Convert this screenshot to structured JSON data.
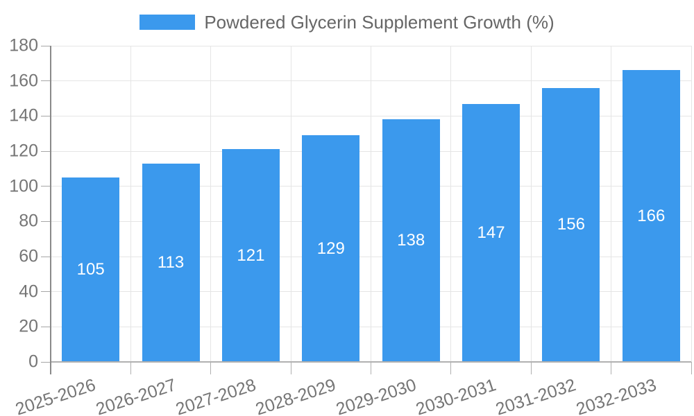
{
  "chart_data": {
    "type": "bar",
    "title": "Powdered Glycerin Supplement Growth (%)",
    "categories": [
      "2025-2026",
      "2026-2027",
      "2027-2028",
      "2028-2029",
      "2029-2030",
      "2030-2031",
      "2031-2032",
      "2032-2033"
    ],
    "values": [
      105,
      113,
      121,
      129,
      138,
      147,
      156,
      166
    ],
    "xlabel": "",
    "ylabel": "",
    "ylim": [
      0,
      180
    ],
    "yticks": [
      0,
      20,
      40,
      60,
      80,
      100,
      120,
      140,
      160,
      180
    ],
    "grid": true,
    "legend_position": "top-center",
    "value_labels_position": "inside-center"
  },
  "legend": {
    "label": "Powdered Glycerin Supplement Growth (%)"
  },
  "colors": {
    "bar": "#3b99ed",
    "bar_label": "#ffffff",
    "grid": "#e5e5e5",
    "axis_y_line": "#8a8a8a",
    "axis_x_line": "#b0b0b0",
    "tick": "#b0b0b0",
    "y_tick_mark": "#a6a6a6",
    "tick_label": "#757575",
    "legend_text": "#666666",
    "background": "#ffffff"
  }
}
